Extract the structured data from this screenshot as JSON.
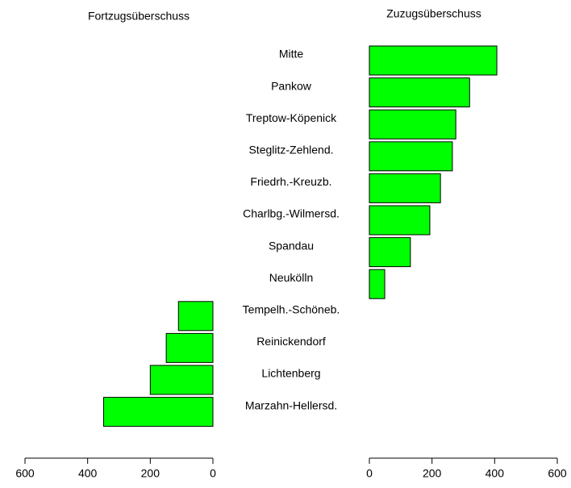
{
  "chart_data": {
    "type": "bar",
    "categories": [
      "Mitte",
      "Pankow",
      "Treptow-Köpenick",
      "Steglitz-Zehlend.",
      "Friedrh.-Kreuzb.",
      "Charlbg.-Wilmersd.",
      "Spandau",
      "Neukölln",
      "Tempelh.-Schöneb.",
      "Reinickendorf",
      "Lichtenberg",
      "Marzahn-Hellersd."
    ],
    "series": [
      {
        "name": "Fortzugsüberschuss",
        "color": "#00ff00",
        "values": [
          0,
          0,
          0,
          0,
          0,
          0,
          0,
          0,
          110,
          149,
          200,
          349
        ]
      },
      {
        "name": "Zuzugsüberschuss",
        "color": "#00ff00",
        "values": [
          407,
          320,
          276,
          265,
          227,
          193,
          131,
          49,
          0,
          0,
          0,
          0
        ]
      }
    ],
    "xlim": [
      0,
      600
    ],
    "xticks": [
      0,
      200,
      400,
      600
    ]
  }
}
